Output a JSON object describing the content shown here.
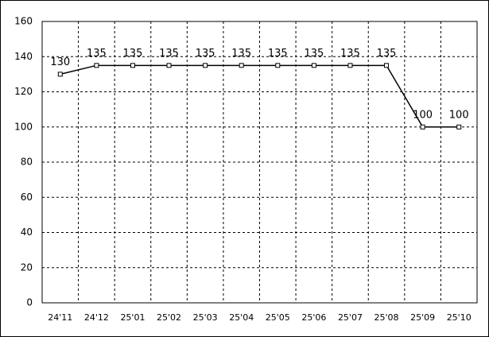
{
  "chart_data": {
    "type": "line",
    "categories": [
      "24'11",
      "24'12",
      "25'01",
      "25'02",
      "25'03",
      "25'04",
      "25'05",
      "25'06",
      "25'07",
      "25'08",
      "25'09",
      "25'10"
    ],
    "values": [
      130,
      135,
      135,
      135,
      135,
      135,
      135,
      135,
      135,
      135,
      100,
      100
    ],
    "color": "#000000",
    "ylim": [
      0,
      160
    ],
    "yticks": [
      0,
      20,
      40,
      60,
      80,
      100,
      120,
      140,
      160
    ],
    "grid": true
  }
}
